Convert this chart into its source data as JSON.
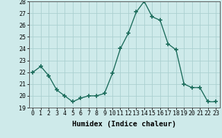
{
  "x": [
    0,
    1,
    2,
    3,
    4,
    5,
    6,
    7,
    8,
    9,
    10,
    11,
    12,
    13,
    14,
    15,
    16,
    17,
    18,
    19,
    20,
    21,
    22,
    23
  ],
  "y": [
    22.0,
    22.5,
    21.7,
    20.5,
    20.0,
    19.5,
    19.8,
    20.0,
    20.0,
    20.2,
    21.9,
    24.0,
    25.3,
    27.1,
    28.0,
    26.7,
    26.4,
    24.4,
    23.9,
    21.0,
    20.7,
    20.7,
    19.5,
    19.5
  ],
  "line_color": "#1a6b5a",
  "marker": "+",
  "marker_size": 4,
  "marker_lw": 1.2,
  "bg_color": "#ceeaea",
  "grid_color": "#aacfcf",
  "xlabel": "Humidex (Indice chaleur)",
  "xlim": [
    -0.5,
    23.5
  ],
  "ylim": [
    19,
    28
  ],
  "yticks": [
    19,
    20,
    21,
    22,
    23,
    24,
    25,
    26,
    27,
    28
  ],
  "xticks": [
    0,
    1,
    2,
    3,
    4,
    5,
    6,
    7,
    8,
    9,
    10,
    11,
    12,
    13,
    14,
    15,
    16,
    17,
    18,
    19,
    20,
    21,
    22,
    23
  ],
  "tick_fontsize": 6,
  "xlabel_fontsize": 7.5,
  "linewidth": 1.0
}
